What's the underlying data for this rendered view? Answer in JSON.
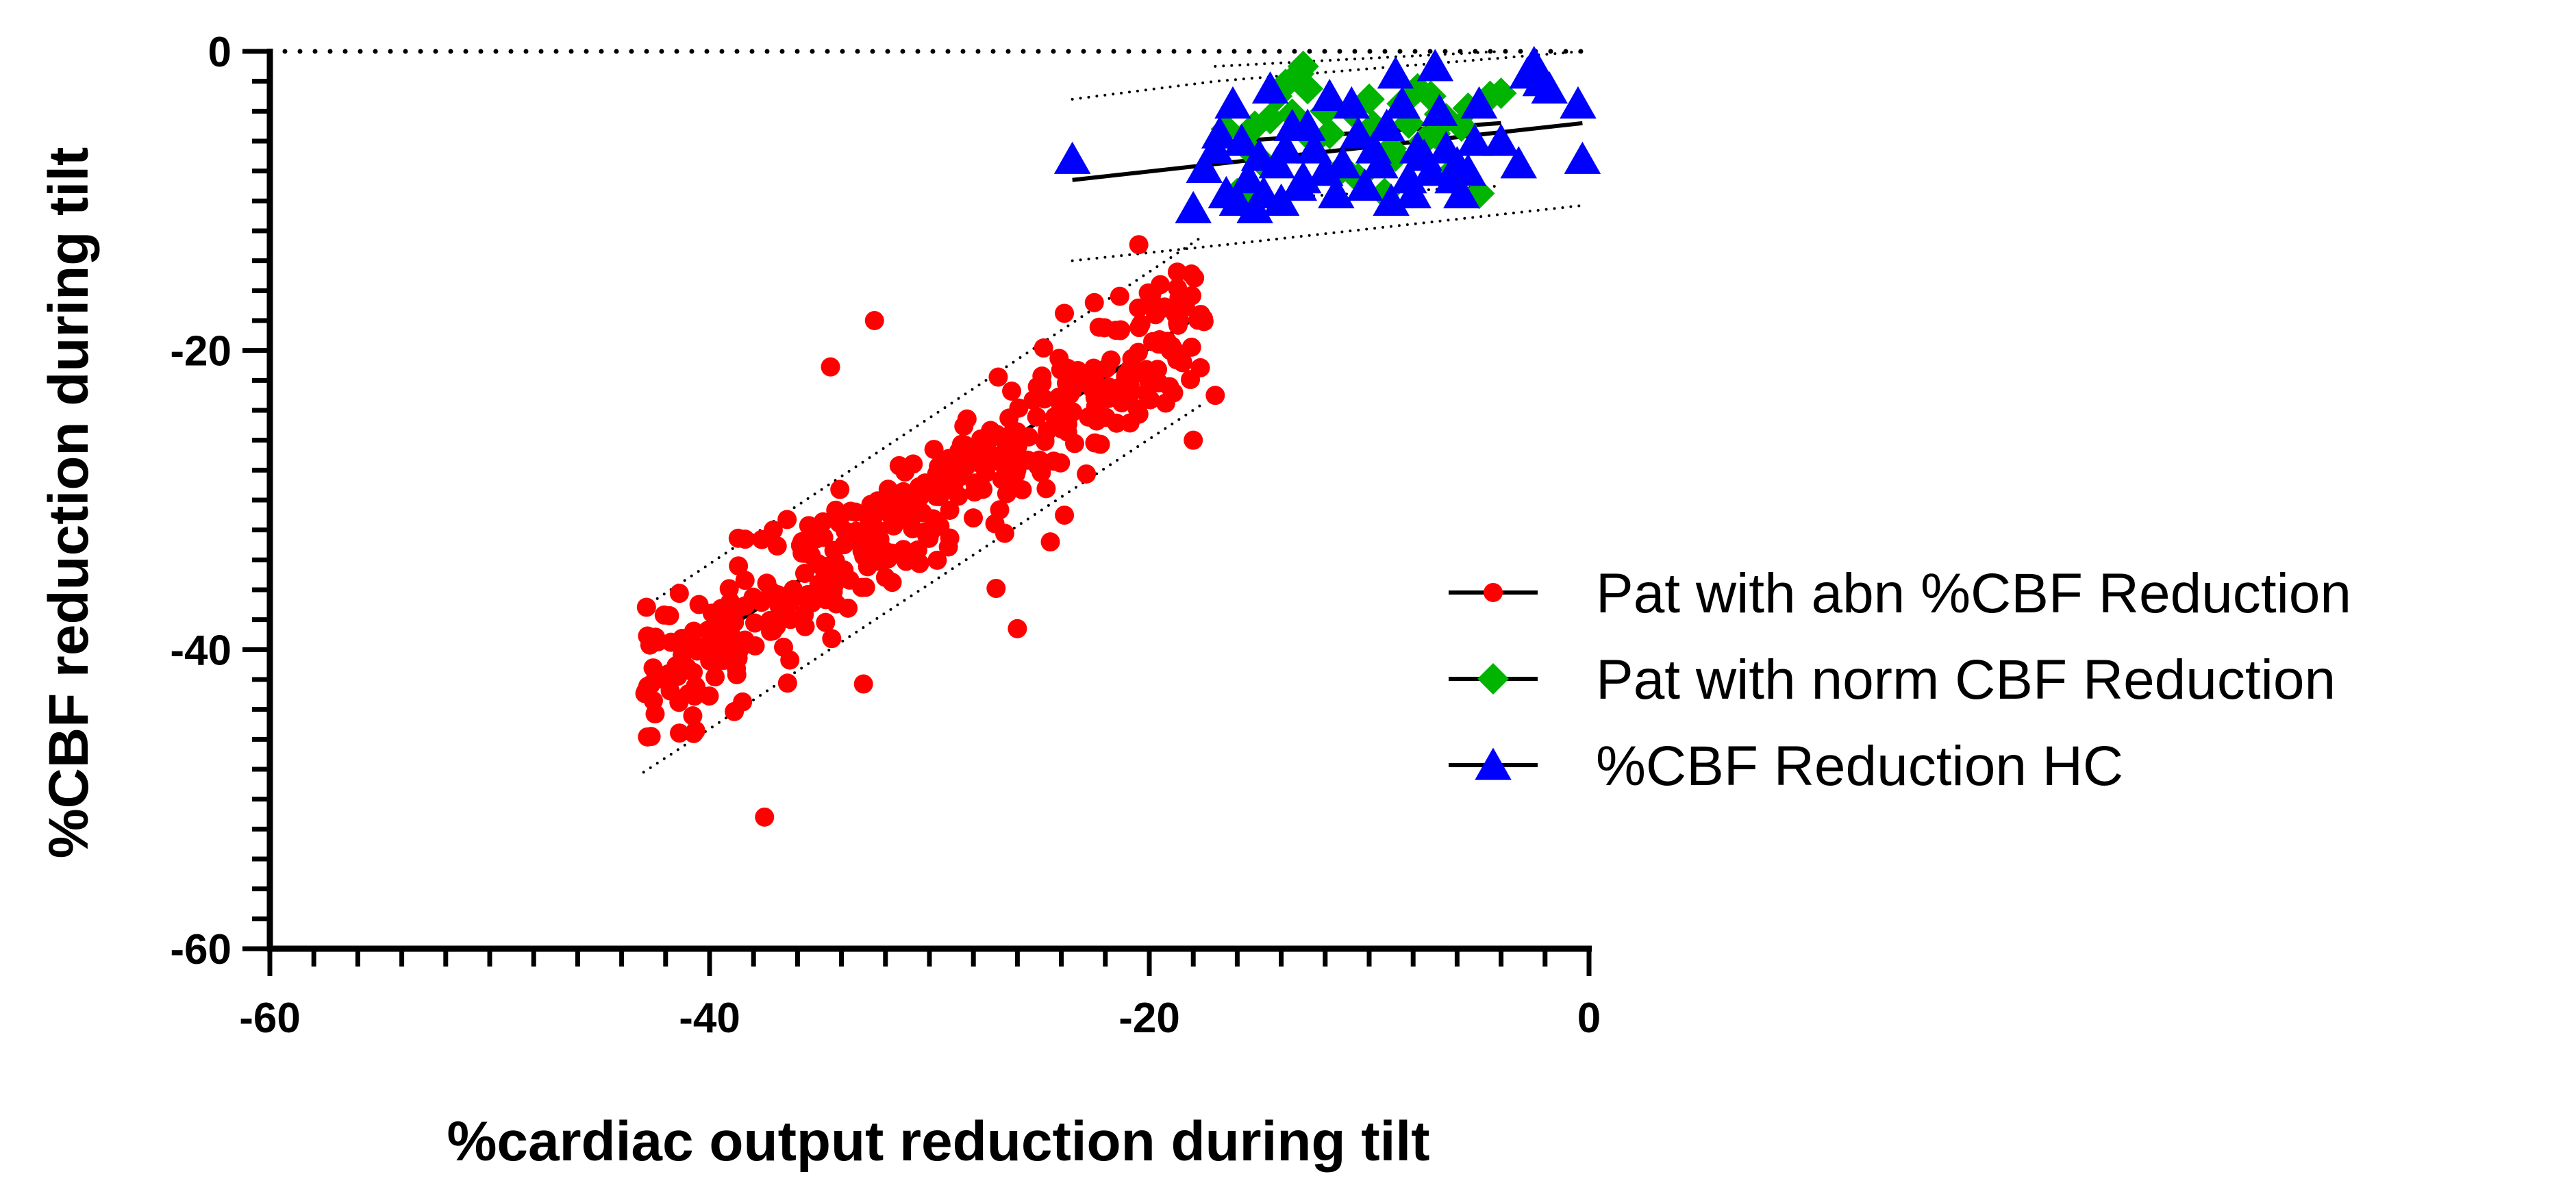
{
  "chart_data": {
    "type": "scatter",
    "title": "",
    "xlabel": "%cardiac output reduction during tilt",
    "ylabel": "%CBF reduction during tilt",
    "xlim": [
      -60,
      0
    ],
    "ylim": [
      -60,
      0
    ],
    "xticks": [
      -60,
      -40,
      -20,
      0
    ],
    "yticks": [
      -60,
      -40,
      -20,
      0
    ],
    "x_tick_labels": [
      "-60",
      "-40",
      "-20",
      "0"
    ],
    "y_tick_labels": [
      "-60",
      "-40",
      "-20",
      "0"
    ],
    "reference_line": {
      "y": 0,
      "style": "dotted"
    },
    "legend_position": "right",
    "series": [
      {
        "name": "Pat with abn %CBF Reduction",
        "color": "#ff0000",
        "marker": "circle",
        "n_points": 420,
        "generation": {
          "x_range": [
            -43,
            -17.5
          ],
          "slope": 0.98,
          "intercept": -0.8,
          "noise_sd": 2.3,
          "seed": 11
        },
        "outliers": [
          [
            -37.5,
            -51.2
          ],
          [
            -32.5,
            -18.0
          ],
          [
            -34.5,
            -21.1
          ],
          [
            -26,
            -38.6
          ],
          [
            -24.5,
            -32.8
          ],
          [
            -38.5,
            -43.5
          ],
          [
            -40,
            -40.2
          ],
          [
            -33,
            -42.3
          ],
          [
            -17,
            -23
          ],
          [
            -18,
            -26
          ],
          [
            -19.5,
            -15.6
          ],
          [
            -22.5,
            -16.8
          ]
        ],
        "fit": {
          "x": [
            -43,
            -17.5
          ],
          "y": [
            -42.3,
            -17.4
          ]
        },
        "confidence_band": {
          "upper": [
            [
              -43,
              -37.2
            ],
            [
              -17.5,
              -12.3
            ]
          ],
          "lower": [
            [
              -43,
              -48.2
            ],
            [
              -17.5,
              -23.5
            ]
          ]
        }
      },
      {
        "name": "Pat with norm CBF Reduction",
        "color": "#00b400",
        "marker": "diamond",
        "points": [
          [
            -16.5,
            -5.2
          ],
          [
            -15.8,
            -9.8
          ],
          [
            -15.2,
            -5.0
          ],
          [
            -14.5,
            -4.5
          ],
          [
            -14.2,
            -3.0
          ],
          [
            -13.8,
            -2.2
          ],
          [
            -13.5,
            -4.2
          ],
          [
            -13.2,
            -1.5
          ],
          [
            -13.0,
            -1.0
          ],
          [
            -12.8,
            -2.5
          ],
          [
            -12.5,
            -6.0
          ],
          [
            -11.8,
            -5.5
          ],
          [
            -11.2,
            -7.8
          ],
          [
            -10.8,
            -4.0
          ],
          [
            -10.5,
            -8.5
          ],
          [
            -9.8,
            -5.0
          ],
          [
            -9.3,
            -9.5
          ],
          [
            -9.0,
            -6.5
          ],
          [
            -8.5,
            -3.5
          ],
          [
            -8.2,
            -4.8
          ],
          [
            -7.8,
            -2.5
          ],
          [
            -7.5,
            -6.0
          ],
          [
            -7.2,
            -3.0
          ],
          [
            -7.0,
            -5.5
          ],
          [
            -6.5,
            -4.5
          ],
          [
            -6.2,
            -8.0
          ],
          [
            -5.8,
            -5.0
          ],
          [
            -5.5,
            -3.8
          ],
          [
            -5.0,
            -9.5
          ],
          [
            -4.5,
            -3.0
          ],
          [
            -4.0,
            -2.8
          ],
          [
            -14.8,
            -7.5
          ],
          [
            -12.0,
            -4.0
          ],
          [
            -10.0,
            -3.2
          ],
          [
            -15.5,
            -6.5
          ],
          [
            -16.0,
            -9.5
          ],
          [
            -8.8,
            -7.0
          ],
          [
            -6.8,
            -4.2
          ]
        ],
        "fit": {
          "x": [
            -17,
            -4
          ],
          "y": [
            -6.1,
            -4.8
          ]
        },
        "confidence_band": {
          "upper": [
            [
              -17,
              -1.0
            ],
            [
              -4,
              0.0
            ]
          ],
          "lower": [
            [
              -17,
              -10.0
            ],
            [
              -4,
              -9.0
            ]
          ]
        }
      },
      {
        "name": "%CBF Reduction HC",
        "color": "#0000ff",
        "marker": "triangle",
        "points": [
          [
            -23.5,
            -7.2
          ],
          [
            -18.0,
            -10.5
          ],
          [
            -17.5,
            -7.8
          ],
          [
            -17.0,
            -6.5
          ],
          [
            -16.5,
            -9.5
          ],
          [
            -16.2,
            -3.5
          ],
          [
            -16.0,
            -10.0
          ],
          [
            -15.8,
            -6.0
          ],
          [
            -15.5,
            -8.5
          ],
          [
            -15.2,
            -10.5
          ],
          [
            -15.0,
            -7.0
          ],
          [
            -14.8,
            -9.5
          ],
          [
            -14.5,
            -2.5
          ],
          [
            -14.2,
            -7.5
          ],
          [
            -14.0,
            -10.0
          ],
          [
            -13.8,
            -6.5
          ],
          [
            -13.5,
            -5.0
          ],
          [
            -13.2,
            -9.0
          ],
          [
            -12.5,
            -6.5
          ],
          [
            -12.0,
            -8.0
          ],
          [
            -11.5,
            -9.5
          ],
          [
            -11.2,
            -7.5
          ],
          [
            -10.8,
            -3.5
          ],
          [
            -10.5,
            -5.5
          ],
          [
            -10.2,
            -9.0
          ],
          [
            -9.8,
            -6.5
          ],
          [
            -9.5,
            -7.5
          ],
          [
            -9.0,
            -10.0
          ],
          [
            -8.5,
            -3.5
          ],
          [
            -8.2,
            -8.5
          ],
          [
            -8.0,
            -9.5
          ],
          [
            -7.8,
            -6.5
          ],
          [
            -7.5,
            -7.0
          ],
          [
            -7.2,
            -8.0
          ],
          [
            -7.0,
            -1.0
          ],
          [
            -6.8,
            -4.0
          ],
          [
            -6.5,
            -6.5
          ],
          [
            -6.2,
            -8.5
          ],
          [
            -6.0,
            -7.5
          ],
          [
            -5.8,
            -9.5
          ],
          [
            -5.5,
            -8.0
          ],
          [
            -5.2,
            -6.0
          ],
          [
            -5.0,
            -3.5
          ],
          [
            -4.0,
            -6.0
          ],
          [
            -3.2,
            -7.5
          ],
          [
            -2.8,
            -1.5
          ],
          [
            -2.5,
            -0.8
          ],
          [
            -2.2,
            -2.0
          ],
          [
            -1.8,
            -2.5
          ],
          [
            -0.5,
            -3.5
          ],
          [
            -0.3,
            -7.2
          ],
          [
            -12.8,
            -5.0
          ],
          [
            -11.8,
            -3.0
          ],
          [
            -9.2,
            -5.0
          ],
          [
            -16.8,
            -5.5
          ],
          [
            -13.0,
            -8.5
          ],
          [
            -8.8,
            -1.5
          ]
        ],
        "fit": {
          "x": [
            -23.5,
            -0.3
          ],
          "y": [
            -8.6,
            -4.8
          ]
        },
        "confidence_band": {
          "upper": [
            [
              -23.5,
              -3.2
            ],
            [
              -17,
              -2.0
            ],
            [
              -0.3,
              0.0
            ]
          ],
          "lower": [
            [
              -23.5,
              -14.0
            ],
            [
              -17,
              -13.0
            ],
            [
              -0.3,
              -10.3
            ]
          ]
        }
      }
    ]
  }
}
